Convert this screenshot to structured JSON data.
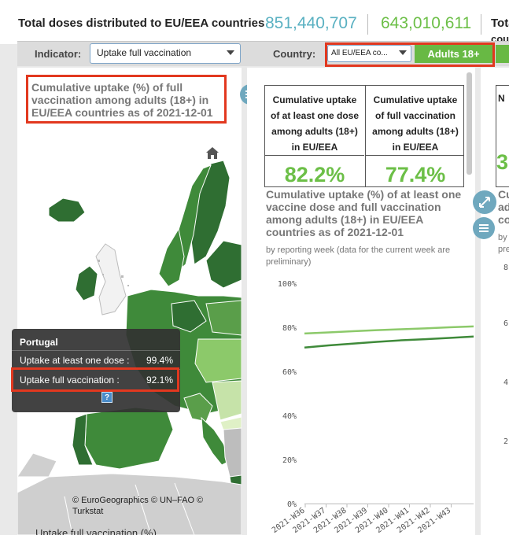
{
  "header": {
    "title": "Total doses distributed to EU/EEA countries",
    "total_distributed": "851,440,707",
    "total_administered": "643,010,611",
    "cut_title": "Tota",
    "cut_title2": "cou"
  },
  "filters": {
    "indicator_label": "Indicator:",
    "indicator_value": "Uptake full vaccination",
    "country_label": "Country:",
    "country_value": "All EU/EEA co...",
    "group_button": "Adults 18+"
  },
  "map": {
    "title": "Cumulative uptake (%) of full vaccination among adults (18+) in EU/EEA countries as of 2021-12-01",
    "credit": "© EuroGeographics © UN–FAO © Turkstat",
    "legend_title": "Uptake full vaccination (%)",
    "tooltip": {
      "country": "Portugal",
      "rows": [
        {
          "label": "Uptake at least one dose :",
          "value": "99.4%"
        },
        {
          "label": "Uptake full vaccination :",
          "value": "92.1%"
        }
      ],
      "help": "?"
    }
  },
  "kpis": [
    {
      "label": "Cumulative uptake of at least one dose among adults (18+) in EU/EEA",
      "value": "82.2%"
    },
    {
      "label": "Cumulative uptake of full vaccination among adults (18+) in EU/EEA",
      "value": "77.4%"
    }
  ],
  "line_chart": {
    "subtitle": "by reporting week (data for the current week are preliminary)"
  },
  "chart_data": {
    "type": "line",
    "title": "Cumulative uptake (%) of at least one vaccine dose and full vaccination among adults (18+) in EU/EEA countries as of 2021-12-01",
    "x": [
      "2021-W36",
      "2021-W37",
      "2021-W38",
      "2021-W39",
      "2021-W40",
      "2021-W41",
      "2021-W42",
      "2021-W43"
    ],
    "yticks": [
      "0%",
      "20%",
      "40%",
      "60%",
      "80%",
      "100%"
    ],
    "ylim": [
      0,
      100
    ],
    "grid": false,
    "series": [
      {
        "values": [
          77.2,
          77.7,
          78.2,
          78.7,
          79.1,
          79.5,
          80.0,
          80.4
        ],
        "color": "#8cc96a"
      },
      {
        "values": [
          70.8,
          71.8,
          72.6,
          73.4,
          74.1,
          74.6,
          75.2,
          75.8
        ],
        "color": "#3f8a3a"
      }
    ]
  },
  "right_panel": {
    "kpi_head": "N",
    "kpi_val": "3",
    "title_lines": [
      "Cu",
      "ad",
      "co"
    ],
    "sub_lines": [
      "by",
      "pre"
    ],
    "ticks": [
      "8",
      "6",
      "4",
      "2"
    ]
  },
  "colors": {
    "accent_blue": "#5ab1c2",
    "accent_green": "#6cbf47",
    "highlight_red": "#e2381f"
  }
}
